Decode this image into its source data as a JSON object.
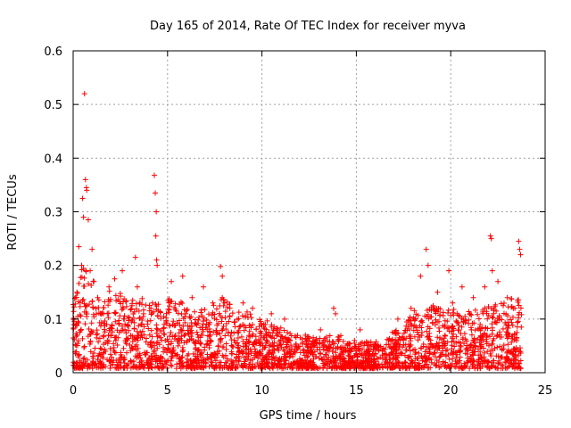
{
  "chart_data": {
    "type": "scatter",
    "title": "Day 165 of 2014, Rate Of TEC Index for receiver myva",
    "xlabel": "GPS time / hours",
    "ylabel": "ROTI / TECUs",
    "xlim": [
      0,
      25
    ],
    "ylim": [
      0,
      0.6
    ],
    "x_ticks": [
      0,
      5,
      10,
      15,
      20,
      25
    ],
    "x_tick_labels": [
      "0",
      "5",
      "10",
      "15",
      "20",
      "25"
    ],
    "y_ticks": [
      0,
      0.1,
      0.2,
      0.3,
      0.4,
      0.5,
      0.6
    ],
    "y_tick_labels": [
      "0",
      "0.1",
      "0.2",
      "0.3",
      "0.4",
      "0.5",
      "0.6"
    ],
    "grid": true,
    "marker": "+",
    "marker_color": "#ff0000",
    "series": [
      {
        "name": "ROTI",
        "x": [
          0.6,
          0.65,
          0.7,
          0.72,
          0.8,
          0.5,
          0.55,
          1.0,
          4.3,
          4.35,
          4.4,
          4.38,
          4.42,
          4.45,
          0.2,
          0.3,
          0.45,
          0.9,
          1.1,
          1.3,
          1.6,
          1.9,
          2.2,
          2.6,
          3.3,
          3.4,
          4.2,
          5.2,
          5.8,
          6.3,
          6.9,
          7.4,
          7.8,
          7.9,
          8.3,
          9.0,
          9.5,
          10.5,
          11.2,
          12.3,
          13.1,
          13.8,
          13.9,
          14.9,
          15.2,
          16.0,
          16.9,
          17.2,
          17.9,
          18.4,
          18.7,
          18.8,
          19.3,
          19.9,
          20.1,
          20.6,
          21.2,
          21.8,
          22.1,
          22.15,
          22.2,
          22.5,
          23.0,
          23.4,
          23.6,
          23.65,
          23.7
        ],
        "y": [
          0.52,
          0.36,
          0.345,
          0.34,
          0.285,
          0.325,
          0.29,
          0.23,
          0.368,
          0.335,
          0.3,
          0.255,
          0.21,
          0.2,
          0.15,
          0.235,
          0.2,
          0.19,
          0.17,
          0.14,
          0.11,
          0.16,
          0.175,
          0.19,
          0.215,
          0.16,
          0.13,
          0.17,
          0.18,
          0.14,
          0.16,
          0.13,
          0.198,
          0.18,
          0.12,
          0.13,
          0.12,
          0.11,
          0.1,
          0.07,
          0.08,
          0.12,
          0.11,
          0.06,
          0.08,
          0.05,
          0.06,
          0.1,
          0.12,
          0.18,
          0.23,
          0.2,
          0.15,
          0.19,
          0.13,
          0.16,
          0.14,
          0.16,
          0.255,
          0.25,
          0.19,
          0.17,
          0.14,
          0.12,
          0.245,
          0.23,
          0.22
        ]
      }
    ]
  }
}
